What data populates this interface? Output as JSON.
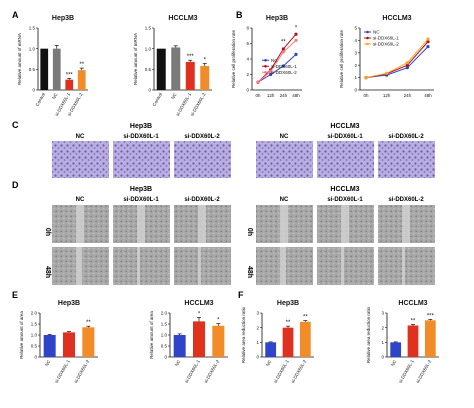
{
  "panel_letters": {
    "a": "A",
    "b": "B",
    "c": "C",
    "d": "D",
    "e": "E",
    "f": "F"
  },
  "row_labels": {
    "t0": "0h",
    "t48": "48h"
  },
  "colors": {
    "black": "#111111",
    "grey": "#7a7a7a",
    "red": "#e0301e",
    "orange": "#f28c28",
    "blue": "#2f44c8",
    "darkred": "#b0101e",
    "pink": "#ff7a7a",
    "gold": "#f5a623",
    "stain": "#8e7cc3",
    "scratch": "#9a9a9a"
  },
  "image_panels": {
    "invasion": {
      "hep3b_title": "Hep3B",
      "hcclm3_title": "HCCLM3",
      "labels": [
        "NC",
        "si-DDX60L-1",
        "si-DDX60L-2"
      ]
    },
    "wound": {
      "hep3b_title": "Hep3B",
      "hcclm3_title": "HCCLM3",
      "labels": [
        "NC",
        "si-DDX60L-1",
        "si-DDX60L-2"
      ]
    }
  },
  "chart_data": [
    {
      "id": "A1",
      "type": "bar",
      "title": "Hep3B",
      "ylabel": "Relative amount of mRNA",
      "ylim": [
        0,
        1.5
      ],
      "yticks": [
        0,
        0.5,
        1.0,
        1.5
      ],
      "categories": [
        "Control",
        "NC",
        "si-DDX60L-1",
        "si-DDX60L-2"
      ],
      "values": [
        1.0,
        1.0,
        0.25,
        0.48
      ],
      "errors": [
        0,
        0.08,
        0.03,
        0.05
      ],
      "colors": [
        "#111111",
        "#7a7a7a",
        "#e0301e",
        "#f28c28"
      ],
      "sig": [
        "",
        "",
        "***",
        "**"
      ]
    },
    {
      "id": "A2",
      "type": "bar",
      "title": "HCCLM3",
      "ylabel": "Relative amount of mRNA",
      "ylim": [
        0,
        1.5
      ],
      "yticks": [
        0,
        0.5,
        1.0,
        1.5
      ],
      "categories": [
        "Control",
        "NC",
        "si-DDX60L-1",
        "si-DDX60L-2"
      ],
      "values": [
        1.0,
        1.03,
        0.68,
        0.58
      ],
      "errors": [
        0,
        0.04,
        0.04,
        0.06
      ],
      "colors": [
        "#111111",
        "#7a7a7a",
        "#e0301e",
        "#f28c28"
      ],
      "sig": [
        "",
        "",
        "***",
        "*"
      ]
    },
    {
      "id": "B1",
      "type": "line",
      "title": "Hep3B",
      "ylabel": "Relative cell proliferation rate",
      "categories": [
        "0h",
        "12h",
        "24h",
        "48h"
      ],
      "ylim": [
        0,
        8
      ],
      "yticks": [
        0,
        2,
        4,
        6,
        8
      ],
      "series": [
        {
          "name": "NC",
          "values": [
            1.0,
            2.0,
            3.1,
            4.6
          ],
          "color": "#2f44c8"
        },
        {
          "name": "si-DDX60L-1",
          "values": [
            1.0,
            2.6,
            5.3,
            7.2
          ],
          "color": "#b0101e"
        },
        {
          "name": "si-DDX60L-2",
          "values": [
            1.0,
            2.4,
            4.9,
            6.4
          ],
          "color": "#ff7a7a"
        }
      ],
      "annotations": [
        {
          "text": "**",
          "x": "24h",
          "y": 6.0
        },
        {
          "text": "*",
          "x": "48h",
          "y": 7.8
        }
      ],
      "legend": "center-left"
    },
    {
      "id": "B2",
      "type": "line",
      "title": "HCCLM3",
      "ylabel": "Relative cell proliferation rate",
      "categories": [
        "0h",
        "12h",
        "24h",
        "48h"
      ],
      "ylim": [
        0,
        5
      ],
      "yticks": [
        0,
        1,
        2,
        3,
        4,
        5
      ],
      "series": [
        {
          "name": "NC",
          "values": [
            1.0,
            1.2,
            1.8,
            3.5
          ],
          "color": "#2f44c8"
        },
        {
          "name": "si-DDX60L-1",
          "values": [
            1.0,
            1.3,
            2.0,
            3.9
          ],
          "color": "#b0101e"
        },
        {
          "name": "si-DDX60L-2",
          "values": [
            1.0,
            1.35,
            2.2,
            4.1
          ],
          "color": "#f5a623"
        }
      ],
      "annotations": [],
      "legend": "top-left"
    },
    {
      "id": "E1",
      "type": "bar",
      "title": "Hep3B",
      "ylabel": "Relative amount of area",
      "ylim": [
        0,
        2.0
      ],
      "yticks": [
        0,
        0.5,
        1.0,
        1.5,
        2.0
      ],
      "categories": [
        "NC",
        "si-DDX60L-1",
        "si-DDX60L-2"
      ],
      "values": [
        1.0,
        1.12,
        1.35
      ],
      "errors": [
        0.03,
        0.04,
        0.05
      ],
      "colors": [
        "#2f44c8",
        "#e0301e",
        "#f28c28"
      ],
      "sig": [
        "",
        "",
        "**"
      ]
    },
    {
      "id": "E2",
      "type": "bar",
      "title": "HCCLM3",
      "ylabel": "Relative amount of area",
      "ylim": [
        0,
        2.0
      ],
      "yticks": [
        0,
        0.5,
        1.0,
        1.5,
        2.0
      ],
      "categories": [
        "NC",
        "si-DDX60L-1",
        "si-DDX60L-2"
      ],
      "values": [
        1.0,
        1.62,
        1.42
      ],
      "errors": [
        0.05,
        0.18,
        0.1
      ],
      "colors": [
        "#2f44c8",
        "#e0301e",
        "#f28c28"
      ],
      "sig": [
        "",
        "*",
        "*"
      ]
    },
    {
      "id": "F1",
      "type": "bar",
      "title": "Hep3B",
      "ylabel": "Relative area reduction ratio",
      "ylim": [
        0,
        3
      ],
      "yticks": [
        0,
        1,
        2,
        3
      ],
      "categories": [
        "NC",
        "si-DDX60L-1",
        "si-DDX60L-2"
      ],
      "values": [
        1.0,
        2.0,
        2.4
      ],
      "errors": [
        0.03,
        0.1,
        0.08
      ],
      "colors": [
        "#2f44c8",
        "#e0301e",
        "#f28c28"
      ],
      "sig": [
        "",
        "**",
        "**"
      ]
    },
    {
      "id": "F2",
      "type": "bar",
      "title": "HCCLM3",
      "ylabel": "Relative area reduction ratio",
      "ylim": [
        0,
        3
      ],
      "yticks": [
        0,
        1,
        2,
        3
      ],
      "categories": [
        "NC",
        "si-DDX60L-1",
        "si-DDX60L-2"
      ],
      "values": [
        1.0,
        2.15,
        2.5
      ],
      "errors": [
        0.03,
        0.08,
        0.06
      ],
      "colors": [
        "#2f44c8",
        "#e0301e",
        "#f28c28"
      ],
      "sig": [
        "",
        "**",
        "***"
      ]
    }
  ]
}
